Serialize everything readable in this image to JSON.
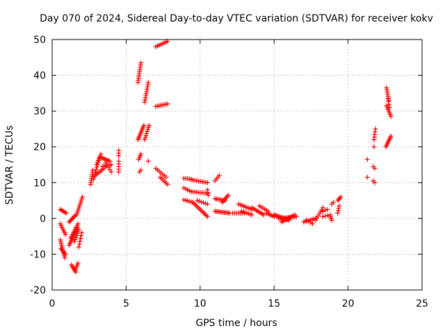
{
  "chart_data": {
    "type": "scatter",
    "title": "Day 070 of 2024, Sidereal Day-to-day VTEC variation (SDTVAR) for receiver kokv",
    "xlabel": "GPS time / hours",
    "ylabel": "SDTVAR / TECUs",
    "xlim": [
      0,
      25
    ],
    "ylim": [
      -20,
      50
    ],
    "xticks": [
      0,
      5,
      10,
      15,
      20,
      25
    ],
    "yticks": [
      -20,
      -10,
      0,
      10,
      20,
      30,
      40,
      50
    ],
    "grid": true,
    "marker": "+",
    "color": "#ff0000",
    "segments": [
      {
        "x0": 0.55,
        "y0": 2.5,
        "x1": 0.95,
        "y1": 1.5,
        "n": 6
      },
      {
        "x0": 0.55,
        "y0": -1.5,
        "x1": 0.9,
        "y1": -4.5,
        "n": 7
      },
      {
        "x0": 0.55,
        "y0": -6.0,
        "x1": 0.85,
        "y1": -11.0,
        "n": 10
      },
      {
        "x0": 0.6,
        "y0": -8.5,
        "x1": 0.9,
        "y1": -10.0,
        "n": 5
      },
      {
        "x0": 1.15,
        "y0": -1.0,
        "x1": 1.55,
        "y1": 0.8,
        "n": 7
      },
      {
        "x0": 1.15,
        "y0": -7.5,
        "x1": 1.7,
        "y1": -2.5,
        "n": 12
      },
      {
        "x0": 1.25,
        "y0": -5.5,
        "x1": 1.75,
        "y1": -1.5,
        "n": 9
      },
      {
        "x0": 1.3,
        "y0": -13.0,
        "x1": 1.6,
        "y1": -15.0,
        "n": 6
      },
      {
        "x0": 1.55,
        "y0": -14.5,
        "x1": 1.75,
        "y1": -12.5,
        "n": 5
      },
      {
        "x0": 1.5,
        "y0": -6.5,
        "x1": 1.8,
        "y1": -3.0,
        "n": 7
      },
      {
        "x0": 1.65,
        "y0": 1.0,
        "x1": 2.05,
        "y1": 6.0,
        "n": 10
      },
      {
        "x0": 1.8,
        "y0": -8.0,
        "x1": 2.0,
        "y1": -4.0,
        "n": 6
      },
      {
        "x0": 2.6,
        "y0": 9.5,
        "x1": 2.75,
        "y1": 13.5,
        "n": 8
      },
      {
        "x0": 2.8,
        "y0": 11.0,
        "x1": 3.2,
        "y1": 17.0,
        "n": 10
      },
      {
        "x0": 2.9,
        "y0": 12.0,
        "x1": 3.5,
        "y1": 14.0,
        "n": 7
      },
      {
        "x0": 3.0,
        "y0": 15.0,
        "x1": 3.3,
        "y1": 18.0,
        "n": 6
      },
      {
        "x0": 3.3,
        "y0": 17.0,
        "x1": 3.9,
        "y1": 16.0,
        "n": 8
      },
      {
        "x0": 3.4,
        "y0": 14.5,
        "x1": 4.0,
        "y1": 15.0,
        "n": 7
      },
      {
        "x0": 3.6,
        "y0": 15.5,
        "x1": 4.0,
        "y1": 13.0,
        "n": 5
      },
      {
        "x0": 4.5,
        "y0": 19.0,
        "x1": 4.5,
        "y1": 17.5,
        "n": 3
      },
      {
        "x0": 4.5,
        "y0": 16.0,
        "x1": 4.5,
        "y1": 13.0,
        "n": 5
      },
      {
        "x0": 5.8,
        "y0": 38.0,
        "x1": 6.0,
        "y1": 43.5,
        "n": 10
      },
      {
        "x0": 5.8,
        "y0": 22.0,
        "x1": 6.2,
        "y1": 26.0,
        "n": 10
      },
      {
        "x0": 5.85,
        "y0": 16.5,
        "x1": 6.0,
        "y1": 18.0,
        "n": 4
      },
      {
        "x0": 5.9,
        "y0": 13.0,
        "x1": 6.0,
        "y1": 13.5,
        "n": 2
      },
      {
        "x0": 6.25,
        "y0": 22.0,
        "x1": 6.55,
        "y1": 26.0,
        "n": 8
      },
      {
        "x0": 6.25,
        "y0": 32.5,
        "x1": 6.5,
        "y1": 38.0,
        "n": 10
      },
      {
        "x0": 6.5,
        "y0": 16.0,
        "x1": 6.5,
        "y1": 16.0,
        "n": 1
      },
      {
        "x0": 7.0,
        "y0": 48.0,
        "x1": 7.8,
        "y1": 49.5,
        "n": 8
      },
      {
        "x0": 7.0,
        "y0": 31.3,
        "x1": 7.8,
        "y1": 32.0,
        "n": 8
      },
      {
        "x0": 7.0,
        "y0": 14.0,
        "x1": 7.7,
        "y1": 11.5,
        "n": 7
      },
      {
        "x0": 7.3,
        "y0": 11.5,
        "x1": 7.8,
        "y1": 9.5,
        "n": 6
      },
      {
        "x0": 8.9,
        "y0": 11.2,
        "x1": 9.4,
        "y1": 11.0,
        "n": 5
      },
      {
        "x0": 8.9,
        "y0": 8.5,
        "x1": 9.4,
        "y1": 7.5,
        "n": 5
      },
      {
        "x0": 8.9,
        "y0": 5.2,
        "x1": 9.5,
        "y1": 4.5,
        "n": 6
      },
      {
        "x0": 9.4,
        "y0": 10.8,
        "x1": 10.5,
        "y1": 10.0,
        "n": 10
      },
      {
        "x0": 9.4,
        "y0": 7.5,
        "x1": 10.5,
        "y1": 7.0,
        "n": 10
      },
      {
        "x0": 9.5,
        "y0": 4.5,
        "x1": 10.5,
        "y1": 0.5,
        "n": 12
      },
      {
        "x0": 9.8,
        "y0": 5.0,
        "x1": 10.5,
        "y1": 4.0,
        "n": 6
      },
      {
        "x0": 10.5,
        "y0": 8.0,
        "x1": 10.55,
        "y1": 6.5,
        "n": 3
      },
      {
        "x0": 11.0,
        "y0": 10.5,
        "x1": 11.3,
        "y1": 12.0,
        "n": 4
      },
      {
        "x0": 11.0,
        "y0": 5.5,
        "x1": 11.7,
        "y1": 5.0,
        "n": 8
      },
      {
        "x0": 11.0,
        "y0": 2.0,
        "x1": 12.0,
        "y1": 1.5,
        "n": 12
      },
      {
        "x0": 11.5,
        "y0": 4.5,
        "x1": 11.9,
        "y1": 6.5,
        "n": 6
      },
      {
        "x0": 12.2,
        "y0": 1.5,
        "x1": 13.0,
        "y1": 1.5,
        "n": 7
      },
      {
        "x0": 12.6,
        "y0": 4.0,
        "x1": 13.5,
        "y1": 2.5,
        "n": 9
      },
      {
        "x0": 12.8,
        "y0": 2.0,
        "x1": 13.5,
        "y1": 1.0,
        "n": 7
      },
      {
        "x0": 13.5,
        "y0": 3.0,
        "x1": 14.3,
        "y1": 1.0,
        "n": 9
      },
      {
        "x0": 14.0,
        "y0": 3.5,
        "x1": 14.6,
        "y1": 2.0,
        "n": 6
      },
      {
        "x0": 14.5,
        "y0": 1.5,
        "x1": 15.0,
        "y1": 0.5,
        "n": 6
      },
      {
        "x0": 15.0,
        "y0": 1.0,
        "x1": 16.0,
        "y1": -0.5,
        "n": 14
      },
      {
        "x0": 15.3,
        "y0": 0.0,
        "x1": 16.5,
        "y1": 0.5,
        "n": 12
      },
      {
        "x0": 15.5,
        "y0": -1.0,
        "x1": 16.4,
        "y1": 1.0,
        "n": 10
      },
      {
        "x0": 17.0,
        "y0": -1.0,
        "x1": 17.8,
        "y1": 0.0,
        "n": 8
      },
      {
        "x0": 17.2,
        "y0": -0.5,
        "x1": 17.6,
        "y1": -1.5,
        "n": 4
      },
      {
        "x0": 17.8,
        "y0": -0.5,
        "x1": 18.3,
        "y1": 3.0,
        "n": 7
      },
      {
        "x0": 18.3,
        "y0": 0.5,
        "x1": 18.8,
        "y1": 1.0,
        "n": 4
      },
      {
        "x0": 18.3,
        "y0": 2.0,
        "x1": 18.6,
        "y1": 2.5,
        "n": 3
      },
      {
        "x0": 18.8,
        "y0": 0.5,
        "x1": 18.9,
        "y1": -0.5,
        "n": 3
      },
      {
        "x0": 18.9,
        "y0": 4.0,
        "x1": 19.0,
        "y1": 4.5,
        "n": 2
      },
      {
        "x0": 19.3,
        "y0": 5.0,
        "x1": 19.5,
        "y1": 6.0,
        "n": 4
      },
      {
        "x0": 19.3,
        "y0": 1.5,
        "x1": 19.4,
        "y1": 3.5,
        "n": 4
      },
      {
        "x0": 21.3,
        "y0": 16.5,
        "x1": 21.3,
        "y1": 16.5,
        "n": 1
      },
      {
        "x0": 21.3,
        "y0": 11.5,
        "x1": 21.3,
        "y1": 11.5,
        "n": 1
      },
      {
        "x0": 21.75,
        "y0": 22.0,
        "x1": 21.85,
        "y1": 25.0,
        "n": 5
      },
      {
        "x0": 21.75,
        "y0": 20.0,
        "x1": 21.75,
        "y1": 20.0,
        "n": 1
      },
      {
        "x0": 21.7,
        "y0": 14.5,
        "x1": 21.8,
        "y1": 14.0,
        "n": 2
      },
      {
        "x0": 21.7,
        "y0": 10.5,
        "x1": 21.8,
        "y1": 10.0,
        "n": 2
      },
      {
        "x0": 22.6,
        "y0": 36.5,
        "x1": 22.75,
        "y1": 33.0,
        "n": 7
      },
      {
        "x0": 22.6,
        "y0": 31.5,
        "x1": 22.9,
        "y1": 28.5,
        "n": 7
      },
      {
        "x0": 22.7,
        "y0": 33.5,
        "x1": 22.8,
        "y1": 31.0,
        "n": 4
      },
      {
        "x0": 22.55,
        "y0": 20.0,
        "x1": 22.9,
        "y1": 23.0,
        "n": 8
      }
    ]
  }
}
